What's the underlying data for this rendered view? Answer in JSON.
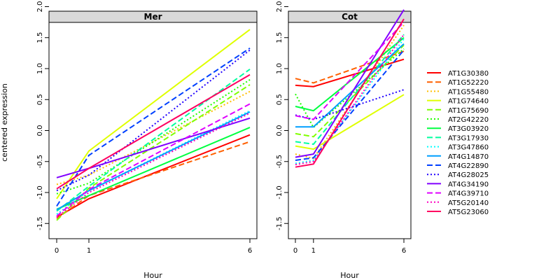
{
  "chart_data": {
    "type": "line",
    "ylabel": "centered expression",
    "xlabel": "Hour",
    "x": [
      "0",
      "1",
      "6"
    ],
    "yticks": [
      "-1.5",
      "-1.0",
      "-0.5",
      "0.0",
      "0.5",
      "1.0",
      "1.5",
      "2.0"
    ],
    "ylim": [
      -1.55,
      2.05
    ],
    "grid": false,
    "legend_position": "right",
    "series_styles": [
      {
        "name": "AT1G30380",
        "color": "#ff0000",
        "dash": "solid"
      },
      {
        "name": "AT1G52220",
        "color": "#ff6000",
        "dash": "dashed"
      },
      {
        "name": "AT1G55480",
        "color": "#ffbf00",
        "dash": "dotted"
      },
      {
        "name": "AT1G74640",
        "color": "#dfff00",
        "dash": "solid"
      },
      {
        "name": "AT1G75690",
        "color": "#80ff00",
        "dash": "dashed"
      },
      {
        "name": "AT2G42220",
        "color": "#20ff00",
        "dash": "dotted"
      },
      {
        "name": "AT3G03920",
        "color": "#00ff40",
        "dash": "solid"
      },
      {
        "name": "AT3G17930",
        "color": "#00ff9f",
        "dash": "dashed"
      },
      {
        "name": "AT3G47860",
        "color": "#00ffff",
        "dash": "dotted"
      },
      {
        "name": "AT4G14870",
        "color": "#009fff",
        "dash": "solid"
      },
      {
        "name": "AT4G22890",
        "color": "#0040ff",
        "dash": "dashed"
      },
      {
        "name": "AT4G28025",
        "color": "#2000ff",
        "dash": "dotted"
      },
      {
        "name": "AT4G34190",
        "color": "#8000ff",
        "dash": "solid"
      },
      {
        "name": "AT4G39710",
        "color": "#df00ff",
        "dash": "dashed"
      },
      {
        "name": "AT5G20140",
        "color": "#ff00bf",
        "dash": "dotted"
      },
      {
        "name": "AT5G23060",
        "color": "#ff0060",
        "dash": "solid"
      }
    ],
    "panels": [
      {
        "title": "Mer",
        "series": [
          {
            "name": "AT1G30380",
            "values": [
              -1.4,
              -1.1,
              -0.07
            ]
          },
          {
            "name": "AT1G52220",
            "values": [
              -1.42,
              -1.05,
              -0.18
            ]
          },
          {
            "name": "AT1G55480",
            "values": [
              -0.87,
              -0.72,
              0.63
            ]
          },
          {
            "name": "AT1G74640",
            "values": [
              -1.1,
              -0.33,
              1.63
            ]
          },
          {
            "name": "AT1G75690",
            "values": [
              -1.45,
              -0.93,
              0.74
            ]
          },
          {
            "name": "AT2G42220",
            "values": [
              -1.02,
              -0.85,
              0.82
            ]
          },
          {
            "name": "AT3G03920",
            "values": [
              -1.27,
              -1.05,
              0.05
            ]
          },
          {
            "name": "AT3G17930",
            "values": [
              -1.3,
              -0.9,
              0.99
            ]
          },
          {
            "name": "AT3G47860",
            "values": [
              -1.35,
              -0.97,
              0.32
            ]
          },
          {
            "name": "AT4G14870",
            "values": [
              -1.28,
              -0.97,
              0.3
            ]
          },
          {
            "name": "AT4G22890",
            "values": [
              -1.22,
              -0.4,
              1.33
            ]
          },
          {
            "name": "AT4G28025",
            "values": [
              -0.97,
              -0.72,
              1.3
            ]
          },
          {
            "name": "AT4G34190",
            "values": [
              -0.76,
              -0.61,
              0.2
            ]
          },
          {
            "name": "AT4G39710",
            "values": [
              -1.38,
              -0.95,
              0.43
            ]
          },
          {
            "name": "AT5G20140",
            "values": [
              -1.4,
              -1.0,
              0.28
            ]
          },
          {
            "name": "AT5G23060",
            "values": [
              -0.94,
              -0.61,
              0.9
            ]
          }
        ]
      },
      {
        "title": "Cot",
        "series": [
          {
            "name": "AT1G30380",
            "values": [
              0.73,
              0.71,
              1.15
            ]
          },
          {
            "name": "AT1G52220",
            "values": [
              0.84,
              0.77,
              1.28
            ]
          },
          {
            "name": "AT1G55480",
            "values": [
              -0.38,
              -0.45,
              1.7
            ]
          },
          {
            "name": "AT1G74640",
            "values": [
              -0.25,
              -0.3,
              0.58
            ]
          },
          {
            "name": "AT1G75690",
            "values": [
              -0.05,
              -0.1,
              1.38
            ]
          },
          {
            "name": "AT2G42220",
            "values": [
              0.59,
              0.05,
              1.32
            ]
          },
          {
            "name": "AT3G03920",
            "values": [
              0.39,
              0.32,
              1.5
            ]
          },
          {
            "name": "AT3G17930",
            "values": [
              -0.18,
              -0.22,
              1.55
            ]
          },
          {
            "name": "AT3G47860",
            "values": [
              -0.53,
              -0.48,
              1.48
            ]
          },
          {
            "name": "AT4G14870",
            "values": [
              0.06,
              0.06,
              1.4
            ]
          },
          {
            "name": "AT4G22890",
            "values": [
              -0.48,
              -0.44,
              1.3
            ]
          },
          {
            "name": "AT4G28025",
            "values": [
              0.25,
              0.18,
              0.66
            ]
          },
          {
            "name": "AT4G34190",
            "values": [
              -0.43,
              -0.38,
              1.95
            ]
          },
          {
            "name": "AT4G39710",
            "values": [
              0.24,
              0.18,
              1.75
            ]
          },
          {
            "name": "AT5G20140",
            "values": [
              -0.55,
              -0.5,
              1.55
            ]
          },
          {
            "name": "AT5G23060",
            "values": [
              -0.59,
              -0.54,
              1.8
            ]
          }
        ]
      }
    ]
  }
}
